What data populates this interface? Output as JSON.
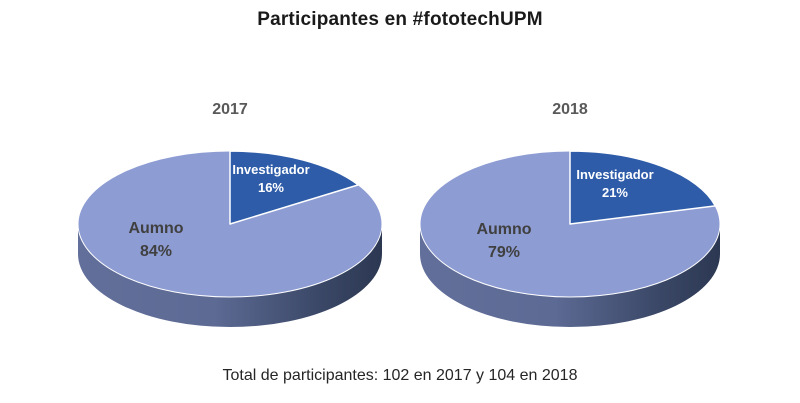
{
  "page": {
    "background": "#ffffff",
    "title": "Participantes en #fototechUPM",
    "title_color": "#1a1a1a",
    "caption": "Total de participantes: 102 en 2017 y 104 en 2018",
    "caption_color": "#262626"
  },
  "chart_data": [
    {
      "type": "pie",
      "variant": "3d",
      "title": "2017",
      "title_color": "#595959",
      "categories": [
        "Investigador",
        "Aumno"
      ],
      "values": [
        16,
        84
      ],
      "unit": "%",
      "start_angle_deg": 0,
      "direction": "clockwise",
      "outline_color": "#ffffff",
      "slices": [
        {
          "label": "Investigador",
          "pct": 16,
          "pct_label": "16%",
          "color": "#2e5ca8",
          "label_color": "#ffffff"
        },
        {
          "label": "Aumno",
          "pct": 84,
          "pct_label": "84%",
          "color": "#8d9cd3",
          "label_color": "#404040"
        }
      ],
      "side_gradient": [
        {
          "offset": 0,
          "color": "#626f9a"
        },
        {
          "offset": 0.45,
          "color": "#5c6a94"
        },
        {
          "offset": 0.8,
          "color": "#3a4766"
        },
        {
          "offset": 1,
          "color": "#2c3852"
        }
      ]
    },
    {
      "type": "pie",
      "variant": "3d",
      "title": "2018",
      "title_color": "#595959",
      "categories": [
        "Investigador",
        "Aumno"
      ],
      "values": [
        21,
        79
      ],
      "unit": "%",
      "start_angle_deg": 0,
      "direction": "clockwise",
      "outline_color": "#ffffff",
      "slices": [
        {
          "label": "Investigador",
          "pct": 21,
          "pct_label": "21%",
          "color": "#2e5ca8",
          "label_color": "#ffffff"
        },
        {
          "label": "Aumno",
          "pct": 79,
          "pct_label": "79%",
          "color": "#8d9cd3",
          "label_color": "#404040"
        }
      ],
      "side_gradient": [
        {
          "offset": 0,
          "color": "#626f9a"
        },
        {
          "offset": 0.45,
          "color": "#5c6a94"
        },
        {
          "offset": 0.8,
          "color": "#3a4766"
        },
        {
          "offset": 1,
          "color": "#2c3852"
        }
      ]
    }
  ]
}
